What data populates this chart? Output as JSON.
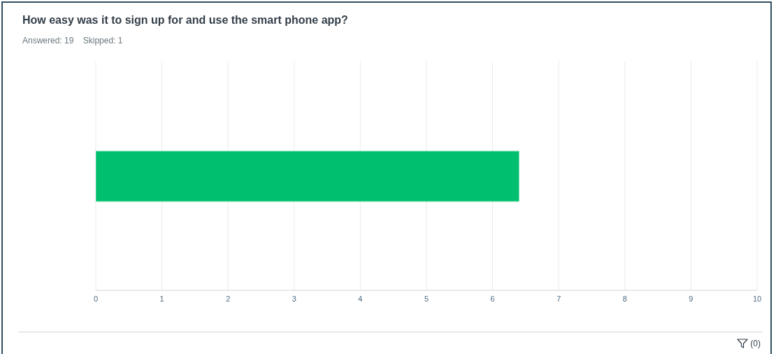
{
  "chart_data": {
    "type": "bar",
    "orientation": "horizontal",
    "title": "How easy was it to sign up for and use the smart phone app?",
    "subtitle": "Answered: 19    Skipped: 1",
    "categories": [
      null
    ],
    "values": [
      6.4
    ],
    "color": "#00bf6f",
    "xlim": [
      0,
      10
    ],
    "xticks": [
      0,
      1,
      2,
      3,
      4,
      5,
      6,
      7,
      8,
      9,
      10
    ],
    "grid": "x",
    "legend": false,
    "annotations": [
      "(0)"
    ]
  }
}
